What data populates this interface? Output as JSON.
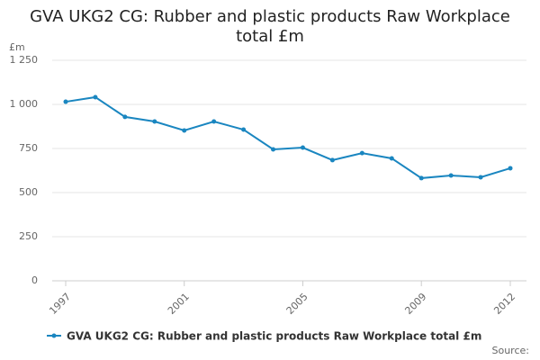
{
  "chart_data": {
    "type": "line",
    "title": "GVA UKG2 CG: Rubber and plastic products Raw Workplace total £m",
    "y_label": "£m",
    "source": "Source:",
    "x": [
      1997,
      1998,
      1999,
      2000,
      2001,
      2002,
      2003,
      2004,
      2005,
      2006,
      2007,
      2008,
      2009,
      2010,
      2011,
      2012
    ],
    "series": [
      {
        "name": "GVA UKG2 CG: Rubber and plastic products Raw Workplace total £m",
        "color": "#1a86c0",
        "values": [
          1015,
          1041,
          929,
          903,
          852,
          903,
          857,
          745,
          755,
          684,
          724,
          694,
          582,
          597,
          587,
          638
        ]
      }
    ],
    "xlim": [
      1997,
      2012
    ],
    "xticks": [
      1997,
      2001,
      2005,
      2009,
      2012
    ],
    "ylim": [
      0,
      1250
    ],
    "yticks": [
      0,
      250,
      500,
      750,
      {
        "value": 1000,
        "label": "1 000"
      },
      {
        "value": 1250,
        "label": "1 250"
      }
    ],
    "grid": true
  }
}
